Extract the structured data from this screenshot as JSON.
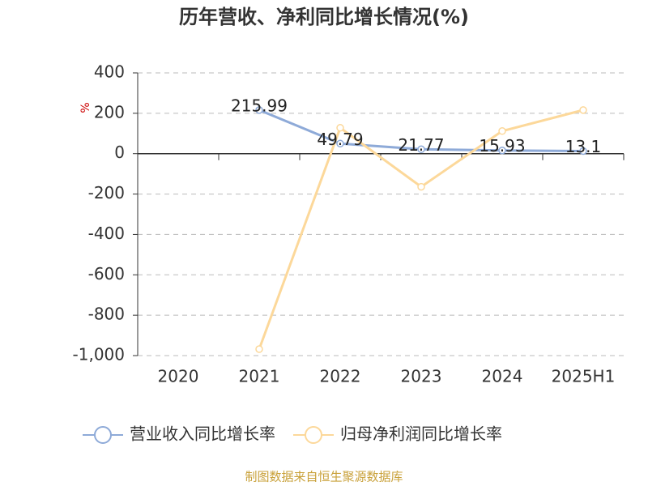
{
  "chart_data": {
    "type": "line",
    "title": "历年营收、净利同比增长情况(%)",
    "y_label": "%",
    "categories": [
      "2020",
      "2021",
      "2022",
      "2023",
      "2024",
      "2025H1"
    ],
    "series": [
      {
        "name": "营业收入同比增长率",
        "color": "#8eaad8",
        "values": [
          null,
          215.99,
          49.79,
          21.77,
          15.93,
          13.1
        ],
        "show_labels": true
      },
      {
        "name": "归母净利润同比增长率",
        "color": "#fcd89a",
        "values": [
          null,
          -968,
          128,
          -164,
          112,
          216
        ],
        "show_labels": false
      }
    ],
    "ylim": [
      -1000,
      400
    ],
    "yticks": [
      400,
      200,
      0,
      -200,
      -400,
      -600,
      -800,
      {
        "value": -1000,
        "label": "-1,000"
      }
    ],
    "grid": true,
    "legend": "bottom",
    "source": "制图数据来自恒生聚源数据库"
  }
}
